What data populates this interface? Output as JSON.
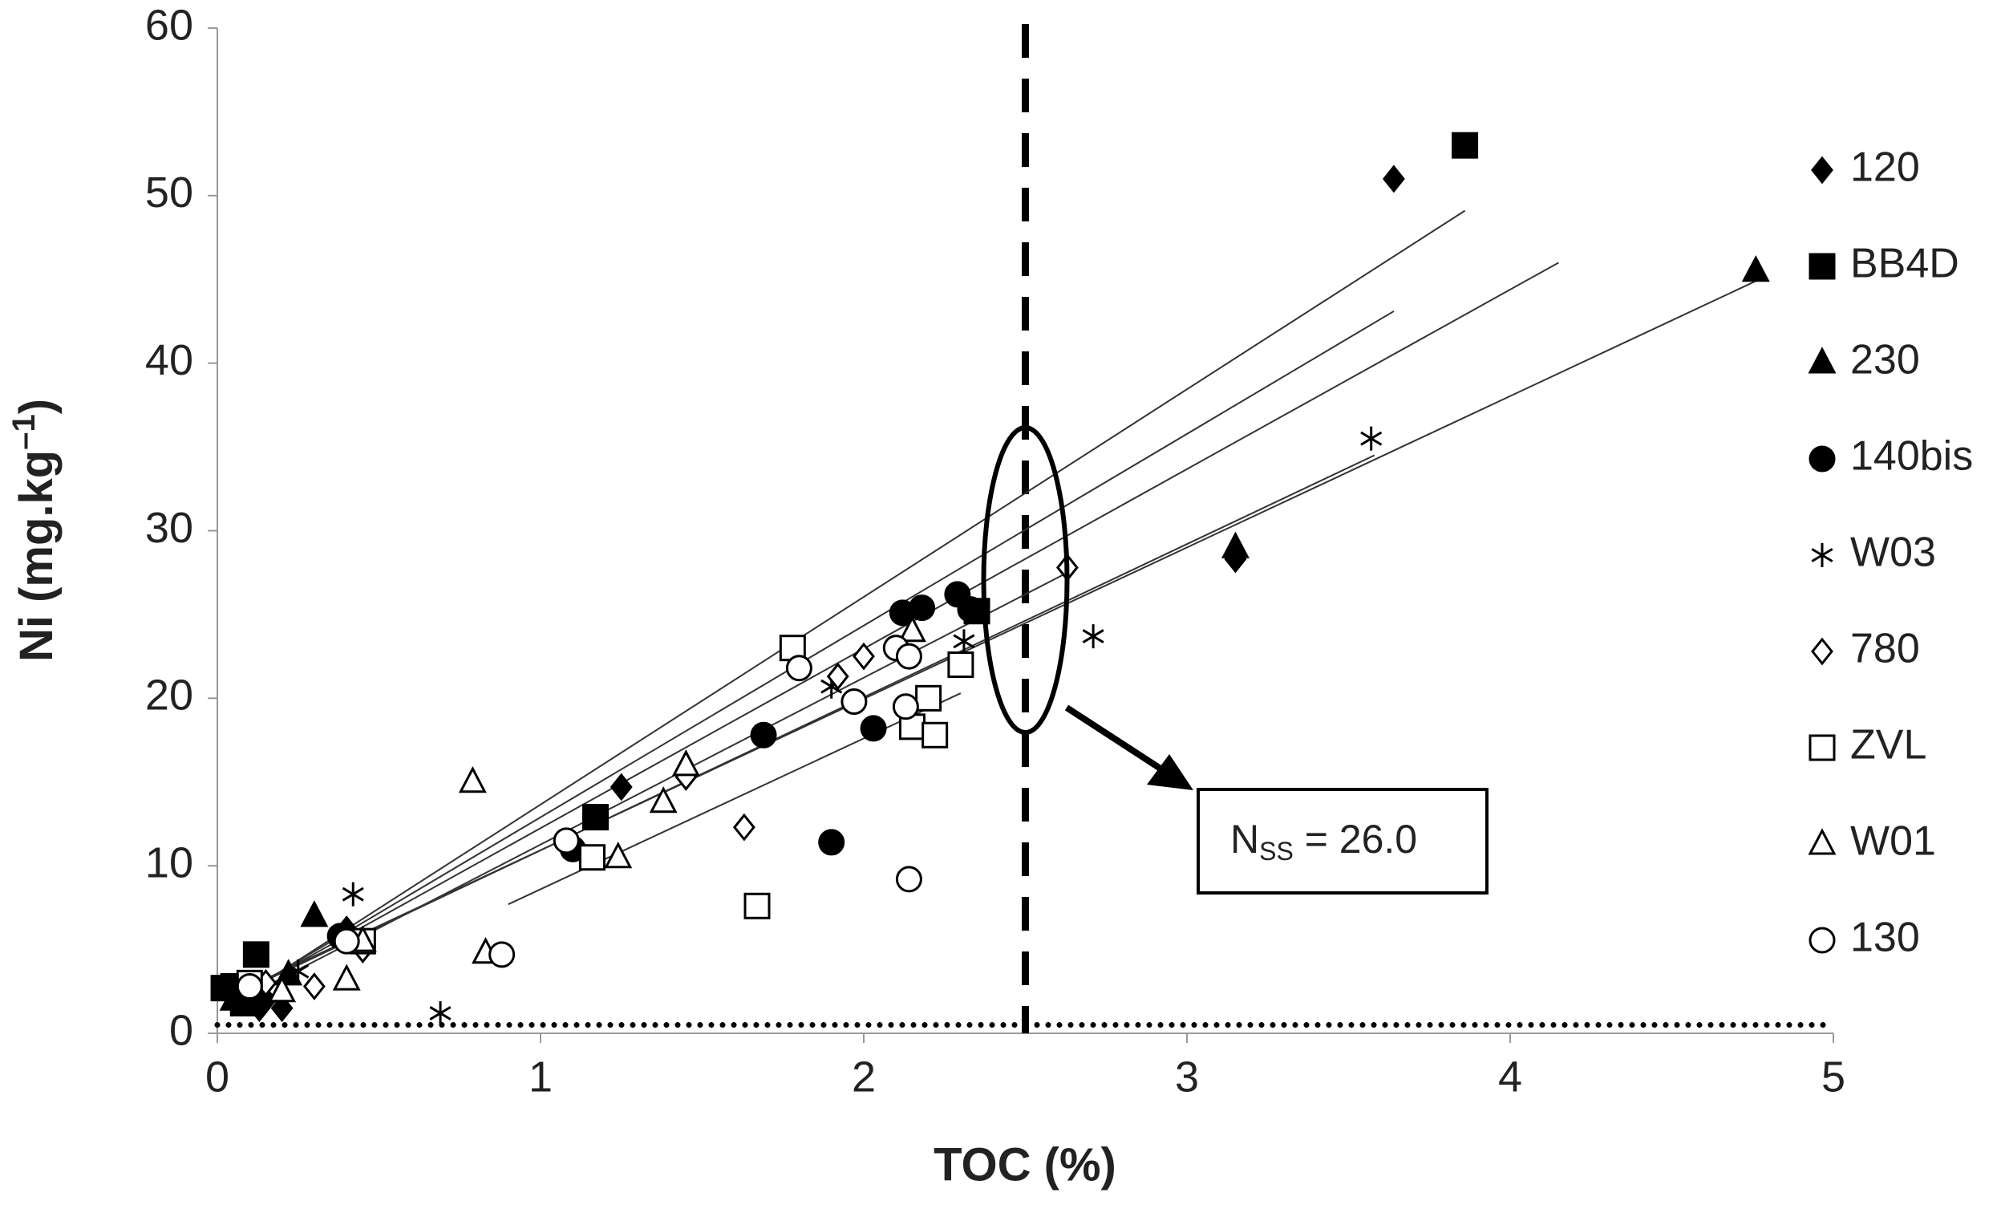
{
  "chart_data": {
    "type": "scatter",
    "x_label": "TOC (%)",
    "y_label": {
      "text": "Ni (mg.kg",
      "sup": "–1",
      "suffix": ")"
    },
    "xlim": [
      0,
      5
    ],
    "xticks": [
      0,
      1,
      2,
      3,
      4,
      5
    ],
    "ylim": [
      0,
      60
    ],
    "yticks": [
      0,
      10,
      20,
      30,
      40,
      50,
      60
    ],
    "legend": "right",
    "threshold_x": 2.5,
    "baseline_y": 0.5,
    "annotation": {
      "text": "N",
      "sub": "SS",
      "suffix": " = 26.0"
    },
    "series": [
      {
        "name": "120",
        "color": "#000000",
        "marker": "diamond",
        "filled": true,
        "x": [
          3.64,
          3.15,
          1.25,
          0.4,
          0.2,
          0.15,
          0.1,
          0.05,
          0.13
        ],
        "values": [
          51,
          28.3,
          14.7,
          6.2,
          1.5,
          2,
          2.5,
          2.2,
          1.5
        ]
      },
      {
        "name": "BB4D",
        "color": "#000000",
        "marker": "square",
        "filled": true,
        "x": [
          3.86,
          2.35,
          1.17,
          0.12,
          0.05,
          0.1,
          0.08,
          0.02
        ],
        "values": [
          53,
          25.2,
          12.9,
          4.7,
          2.8,
          2.2,
          1.8,
          2.7
        ]
      },
      {
        "name": "230",
        "color": "#000000",
        "marker": "triangle",
        "filled": true,
        "x": [
          4.76,
          3.15,
          0.3,
          0.22,
          0.1,
          0.05
        ],
        "values": [
          45.5,
          29,
          7,
          3.5,
          2.5,
          2
        ]
      },
      {
        "name": "140bis",
        "color": "#000000",
        "marker": "circle",
        "filled": true,
        "x": [
          2.12,
          2.18,
          2.29,
          2.33,
          1.69,
          2.03,
          1.1,
          1.9,
          0.38,
          0.1
        ],
        "values": [
          25.1,
          25.4,
          26.2,
          25.3,
          17.8,
          18.2,
          11,
          11.4,
          5.8,
          2.5
        ]
      },
      {
        "name": "W03",
        "color": "#000000",
        "marker": "asterisk",
        "filled": false,
        "x": [
          3.57,
          2.71,
          2.31,
          1.9,
          0.42,
          0.69,
          0.25,
          0.1
        ],
        "values": [
          35.5,
          23.7,
          23.4,
          20.7,
          8.3,
          1.2,
          3.7,
          2.8
        ]
      },
      {
        "name": "780",
        "color": "#000000",
        "marker": "diamond",
        "filled": false,
        "x": [
          2.63,
          2.0,
          1.92,
          1.63,
          0.3,
          0.45,
          1.45,
          0.15
        ],
        "values": [
          27.8,
          22.5,
          21.3,
          12.3,
          2.8,
          5,
          15.3,
          3
        ]
      },
      {
        "name": "ZVL",
        "color": "#000000",
        "marker": "square",
        "filled": false,
        "x": [
          1.78,
          2.3,
          2.2,
          2.15,
          2.22,
          1.16,
          1.67,
          0.45,
          0.1
        ],
        "values": [
          23,
          22,
          20,
          18.3,
          17.8,
          10.5,
          7.6,
          5.5,
          3
        ]
      },
      {
        "name": "W01",
        "color": "#000000",
        "marker": "triangle",
        "filled": false,
        "x": [
          0.79,
          1.45,
          1.38,
          1.24,
          0.83,
          0.4,
          0.45,
          2.15,
          0.2
        ],
        "values": [
          15,
          16,
          13.8,
          10.5,
          4.8,
          3.2,
          5.5,
          24,
          2.5
        ]
      },
      {
        "name": "130",
        "color": "#000000",
        "marker": "circle",
        "filled": false,
        "x": [
          1.8,
          1.97,
          2.1,
          2.14,
          2.13,
          2.14,
          1.08,
          0.88,
          0.4,
          0.1
        ],
        "values": [
          21.8,
          19.8,
          23,
          22.5,
          19.5,
          9.2,
          11.5,
          4.7,
          5.5,
          2.8
        ]
      }
    ],
    "trend_lines": [
      {
        "x": [
          0.1,
          3.86
        ],
        "y": [
          2.5,
          49.1
        ]
      },
      {
        "x": [
          0.1,
          4.15
        ],
        "y": [
          2.6,
          46
        ]
      },
      {
        "x": [
          0.1,
          3.64
        ],
        "y": [
          2.6,
          43.1
        ]
      },
      {
        "x": [
          0.1,
          4.76
        ],
        "y": [
          2.8,
          44.9
        ]
      },
      {
        "x": [
          0.1,
          3.58
        ],
        "y": [
          2.7,
          34.5
        ]
      },
      {
        "x": [
          0.15,
          2.63
        ],
        "y": [
          2.8,
          27.5
        ]
      },
      {
        "x": [
          0.9,
          2.3
        ],
        "y": [
          7.7,
          20.3
        ]
      }
    ]
  }
}
